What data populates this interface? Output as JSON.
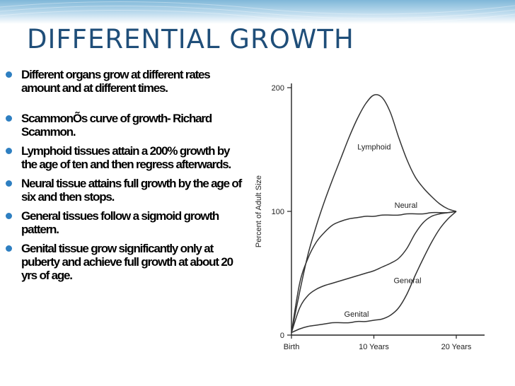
{
  "slide": {
    "title": "DIFFERENTIAL GROWTH",
    "bullets": [
      "Different organs grow at  different rates  amount and at different times.",
      "ScammonÕs curve of growth- Richard Scammon.",
      "Lymphoid tissues attain a 200% growth by the age of ten and then regress afterwards.",
      "Neural  tissue attains full  growth by the age of six and then stops.",
      "General  tissues follow a sigmoid growth pattern.",
      "Genital  tissue grow significantly only at puberty and achieve full growth at about 20 yrs of age."
    ],
    "colors": {
      "title": "#1f4e79",
      "bullet": "#2e7fc1",
      "band": "#7fb7d8"
    }
  },
  "chart_data": {
    "type": "line",
    "title": "",
    "xlabel": "",
    "ylabel": "Percent of Adult Size",
    "xlim": [
      0,
      20
    ],
    "ylim": [
      0,
      200
    ],
    "x_tick_labels": [
      "Birth",
      "10 Years",
      "20 Years"
    ],
    "x_tick_values": [
      0,
      10,
      20
    ],
    "y_tick_labels": [
      "0",
      "100",
      "200"
    ],
    "y_tick_values": [
      0,
      100,
      200
    ],
    "grid": false,
    "series": [
      {
        "name": "Lymphoid",
        "x": [
          0,
          1,
          2,
          3,
          4,
          5,
          6,
          7,
          8,
          9,
          10,
          11,
          12,
          13,
          14,
          15,
          16,
          17,
          18,
          19,
          20
        ],
        "values": [
          2,
          35,
          65,
          88,
          108,
          126,
          143,
          160,
          175,
          187,
          194,
          192,
          180,
          160,
          142,
          128,
          119,
          112,
          106,
          102,
          100
        ]
      },
      {
        "name": "Neural",
        "x": [
          0,
          1,
          2,
          3,
          4,
          5,
          6,
          7,
          8,
          9,
          10,
          11,
          12,
          13,
          14,
          15,
          16,
          17,
          18,
          19,
          20
        ],
        "values": [
          2,
          42,
          62,
          75,
          83,
          89,
          92,
          94,
          95,
          96,
          96,
          97,
          97,
          97,
          98,
          98,
          98,
          99,
          99,
          99,
          100
        ]
      },
      {
        "name": "General",
        "x": [
          0,
          1,
          2,
          3,
          4,
          5,
          6,
          7,
          8,
          9,
          10,
          11,
          12,
          13,
          14,
          15,
          16,
          17,
          18,
          19,
          20
        ],
        "values": [
          2,
          22,
          32,
          37,
          40,
          42,
          44,
          46,
          48,
          50,
          52,
          55,
          58,
          62,
          70,
          82,
          91,
          96,
          98,
          99,
          100
        ]
      },
      {
        "name": "Genital",
        "x": [
          0,
          1,
          2,
          3,
          4,
          5,
          6,
          7,
          8,
          9,
          10,
          11,
          12,
          13,
          14,
          15,
          16,
          17,
          18,
          19,
          20
        ],
        "values": [
          2,
          5,
          7,
          8,
          9,
          10,
          10,
          10,
          11,
          11,
          12,
          13,
          16,
          22,
          33,
          48,
          62,
          75,
          86,
          94,
          100
        ]
      }
    ]
  }
}
